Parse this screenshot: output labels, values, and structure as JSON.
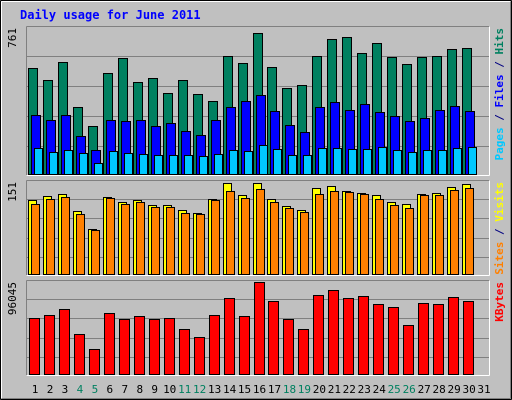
{
  "chart_data": [
    {
      "type": "bar",
      "title": "Daily usage for June 2011",
      "panel": "top",
      "ymax_label": "761",
      "ylim": [
        0,
        761
      ],
      "ylabel_parts": [
        {
          "text": "Pages",
          "color": "#00c8ff"
        },
        {
          "text": " / ",
          "color": "#000080"
        },
        {
          "text": "Files",
          "color": "#0000ff"
        },
        {
          "text": " / ",
          "color": "#000080"
        },
        {
          "text": "Hits",
          "color": "#008060"
        }
      ],
      "categories": [
        "1",
        "2",
        "3",
        "4",
        "5",
        "6",
        "7",
        "8",
        "9",
        "10",
        "11",
        "12",
        "13",
        "14",
        "15",
        "16",
        "17",
        "18",
        "19",
        "20",
        "21",
        "22",
        "23",
        "24",
        "25",
        "26",
        "27",
        "28",
        "29",
        "30",
        "31"
      ],
      "weekend_days": [
        4,
        5,
        11,
        12,
        18,
        19,
        25,
        26
      ],
      "series": [
        {
          "name": "Hits",
          "color": "#008060",
          "values": [
            552,
            491,
            586,
            350,
            255,
            528,
            605,
            480,
            503,
            424,
            490,
            417,
            381,
            618,
            582,
            734,
            557,
            450,
            464,
            616,
            703,
            716,
            633,
            685,
            611,
            576,
            609,
            618,
            654,
            659,
            0
          ]
        },
        {
          "name": "Files",
          "color": "#0000ff",
          "values": [
            313,
            287,
            313,
            203,
            131,
            287,
            278,
            284,
            254,
            267,
            227,
            205,
            283,
            353,
            384,
            414,
            329,
            258,
            221,
            353,
            378,
            339,
            365,
            326,
            303,
            281,
            296,
            339,
            356,
            331,
            0
          ]
        },
        {
          "name": "Pages",
          "color": "#00c8ff",
          "values": [
            139,
            121,
            128,
            112,
            62,
            122,
            115,
            110,
            106,
            106,
            102,
            96,
            107,
            132,
            126,
            154,
            137,
            101,
            103,
            140,
            142,
            134,
            133,
            143,
            130,
            118,
            128,
            132,
            140,
            144,
            0
          ]
        }
      ]
    },
    {
      "type": "bar",
      "panel": "middle",
      "ymax_label": "151",
      "ylim": [
        0,
        151
      ],
      "ylabel_parts": [
        {
          "text": "Sites",
          "color": "#ff8000"
        },
        {
          "text": " / ",
          "color": "#000080"
        },
        {
          "text": "Visits",
          "color": "#ffff00"
        }
      ],
      "series": [
        {
          "name": "Visits",
          "color": "#ffff00",
          "values": [
            121,
            129,
            131,
            104,
            75,
            127,
            118,
            121,
            114,
            113,
            106,
            101,
            123,
            149,
            130,
            150,
            124,
            112,
            105,
            142,
            145,
            136,
            133,
            130,
            118,
            115,
            132,
            133,
            143,
            148,
            0
          ]
        },
        {
          "name": "Sites",
          "color": "#ff8000",
          "values": [
            115,
            124,
            127,
            99,
            73,
            125,
            116,
            118,
            111,
            110,
            101,
            99,
            121,
            137,
            125,
            140,
            118,
            108,
            103,
            132,
            136,
            134,
            131,
            124,
            114,
            108,
            130,
            130,
            138,
            142,
            0
          ]
        }
      ]
    },
    {
      "type": "bar",
      "panel": "bottom",
      "ymax_label": "96045",
      "ylim": [
        0,
        96045
      ],
      "ylabel_parts": [
        {
          "text": "KBytes",
          "color": "#ff0000"
        }
      ],
      "series": [
        {
          "name": "KBytes",
          "color": "#ff0000",
          "values": [
            59000,
            62000,
            68000,
            42000,
            27000,
            64000,
            58000,
            61000,
            58000,
            59000,
            48000,
            39000,
            62000,
            80000,
            61000,
            96045,
            76000,
            58000,
            48000,
            83000,
            88000,
            80000,
            82000,
            73000,
            70000,
            52000,
            74000,
            73000,
            81000,
            76000,
            0
          ]
        }
      ]
    }
  ]
}
